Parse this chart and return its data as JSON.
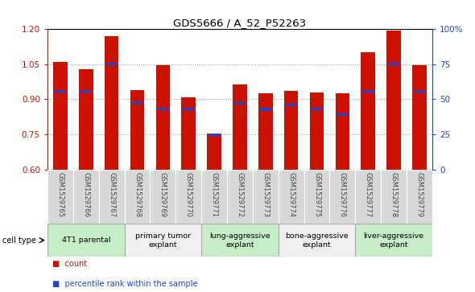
{
  "title": "GDS5666 / A_52_P52263",
  "samples": [
    "GSM1529765",
    "GSM1529766",
    "GSM1529767",
    "GSM1529768",
    "GSM1529769",
    "GSM1529770",
    "GSM1529771",
    "GSM1529772",
    "GSM1529773",
    "GSM1529774",
    "GSM1529775",
    "GSM1529776",
    "GSM1529777",
    "GSM1529778",
    "GSM1529779"
  ],
  "bar_values": [
    1.06,
    1.03,
    1.17,
    0.94,
    1.047,
    0.91,
    0.755,
    0.965,
    0.925,
    0.935,
    0.93,
    0.925,
    1.1,
    1.195,
    1.045
  ],
  "blue_values": [
    0.935,
    0.935,
    1.05,
    0.885,
    0.858,
    0.858,
    0.748,
    0.882,
    0.857,
    0.875,
    0.858,
    0.833,
    0.935,
    1.05,
    0.935
  ],
  "ylim_left": [
    0.6,
    1.2
  ],
  "yticks_left": [
    0.6,
    0.75,
    0.9,
    1.05,
    1.2
  ],
  "yticks_right": [
    0,
    25,
    50,
    75,
    100
  ],
  "bar_color": "#cc1100",
  "blue_color": "#2244cc",
  "cell_type_groups": [
    {
      "label": "4T1 parental",
      "start": 0,
      "end": 3,
      "color": "#c8eec8"
    },
    {
      "label": "primary tumor\nexplant",
      "start": 3,
      "end": 6,
      "color": "#f0f0f0"
    },
    {
      "label": "lung-aggressive\nexplant",
      "start": 6,
      "end": 9,
      "color": "#c8eec8"
    },
    {
      "label": "bone-aggressive\nexplant",
      "start": 9,
      "end": 12,
      "color": "#f0f0f0"
    },
    {
      "label": "liver-aggressive\nexplant",
      "start": 12,
      "end": 15,
      "color": "#c8eec8"
    }
  ],
  "cell_type_label": "cell type",
  "legend_count_label": "count",
  "legend_percentile_label": "percentile rank within the sample",
  "bar_width": 0.55,
  "gsm_label_color": "#444444",
  "sample_bg_color": "#d8d8d8",
  "title_fontsize": 9.5
}
